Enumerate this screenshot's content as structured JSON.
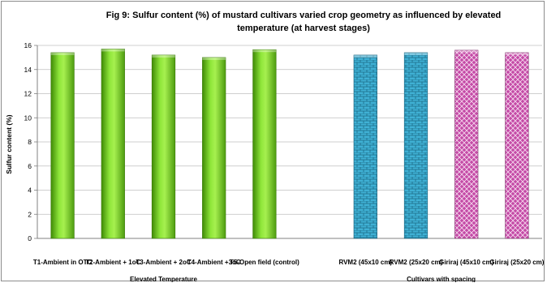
{
  "chart_data": {
    "type": "bar",
    "title_line1": "Fig 9: Sulfur content (%) of mustard cultivars varied crop geometry  as influenced by elevated",
    "title_line2": "temperature (at harvest stages)",
    "ylabel": "Sulfur content (%)",
    "ylim": [
      0,
      16
    ],
    "yticks": [
      0,
      2,
      4,
      6,
      8,
      10,
      12,
      14,
      16
    ],
    "grid": true,
    "categories": [
      "T1-Ambient in OTC",
      "T2-Ambient + 1oC",
      "T3-Ambient + 2oC",
      "T4-Ambient +3oC",
      "T5-Open field (control)",
      "",
      "RVM2 (45x10 cm)",
      "RVM2 (25x20 cm)",
      "Giriraj (45x10 cm)",
      "Giriraj (25x20 cm)"
    ],
    "values": [
      15.4,
      15.7,
      15.2,
      15.0,
      15.65,
      null,
      15.2,
      15.4,
      15.6,
      15.4
    ],
    "bar_styles": [
      "green",
      "green",
      "green",
      "green",
      "green",
      null,
      "blue-brick",
      "blue-brick",
      "pink-check",
      "pink-check"
    ],
    "groups": [
      {
        "label": "Elevated Temperature",
        "from": 0,
        "to": 4
      },
      {
        "label": "Cultivars with spacing",
        "from": 6,
        "to": 9
      }
    ],
    "colors": {
      "green": "#7ed321",
      "green_dark": "#4f9a0e",
      "blue": "#3aa6c9",
      "blue_line": "#1f6f8c",
      "pink": "#c04ba3",
      "pink_line": "#ffffff",
      "grid": "#bfbfbf",
      "axis": "#808080"
    }
  }
}
